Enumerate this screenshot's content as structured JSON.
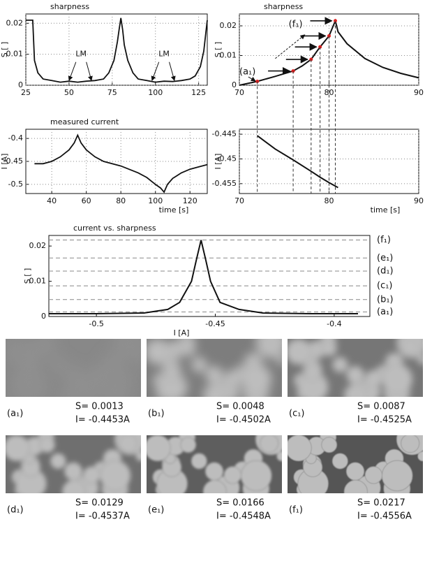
{
  "chart_data": [
    {
      "type": "line",
      "title": "sharpness",
      "ylabel": "S [ ]",
      "xlim": [
        25,
        130
      ],
      "xticks": [
        25,
        50,
        75,
        100,
        125
      ],
      "ylim": [
        0,
        0.023
      ],
      "yticks": [
        0,
        0.01,
        0.02
      ],
      "grid": true,
      "annotations": [
        "LM",
        "LM"
      ],
      "series": [
        {
          "color": "#111111",
          "x": [
            25,
            28,
            29,
            30,
            32,
            35,
            40,
            45,
            50,
            55,
            60,
            65,
            70,
            73,
            76,
            78,
            79,
            80,
            81,
            82,
            84,
            87,
            90,
            95,
            100,
            105,
            110,
            115,
            120,
            123,
            126,
            128,
            129,
            130
          ],
          "values": [
            0.021,
            0.021,
            0.021,
            0.008,
            0.004,
            0.002,
            0.0015,
            0.001,
            0.0013,
            0.001,
            0.0013,
            0.0015,
            0.002,
            0.004,
            0.008,
            0.014,
            0.018,
            0.0217,
            0.018,
            0.013,
            0.008,
            0.004,
            0.002,
            0.0015,
            0.001,
            0.0013,
            0.0012,
            0.0015,
            0.002,
            0.003,
            0.006,
            0.011,
            0.016,
            0.021
          ]
        }
      ]
    },
    {
      "type": "line",
      "title": "sharpness",
      "ylabel": "S [ ]",
      "xlim": [
        70,
        90
      ],
      "xticks": [
        70,
        80,
        90
      ],
      "ylim": [
        0,
        0.024
      ],
      "yticks": [
        0,
        0.01,
        0.02
      ],
      "grid": true,
      "annotations": [
        "(a₁)",
        "(f₁)"
      ],
      "series": [
        {
          "color": "#111111",
          "x": [
            70,
            72,
            74,
            76,
            77,
            78,
            79,
            80,
            80.7,
            81,
            82,
            84,
            86,
            88,
            90
          ],
          "values": [
            0,
            0.0013,
            0.003,
            0.0048,
            0.0065,
            0.0087,
            0.0129,
            0.0166,
            0.0217,
            0.018,
            0.014,
            0.009,
            0.006,
            0.004,
            0.0025
          ]
        },
        {
          "color": "#e02020",
          "style": "points",
          "x": [
            72,
            76,
            78,
            79,
            80,
            80.7
          ],
          "values": [
            0.0013,
            0.0048,
            0.0087,
            0.0129,
            0.0166,
            0.0217
          ]
        }
      ]
    },
    {
      "type": "line",
      "title": "measured current",
      "ylabel": "I [A]",
      "xlabel": "time [s]",
      "xlim": [
        25,
        130
      ],
      "xticks": [
        40,
        60,
        80,
        100,
        120
      ],
      "ylim": [
        -0.52,
        -0.38
      ],
      "yticks": [
        -0.5,
        -0.45,
        -0.4
      ],
      "grid": true,
      "series": [
        {
          "color": "#111111",
          "x": [
            30,
            35,
            40,
            45,
            50,
            53,
            55,
            57,
            60,
            65,
            70,
            80,
            90,
            95,
            100,
            103,
            105,
            107,
            110,
            115,
            120,
            125,
            130
          ],
          "values": [
            -0.455,
            -0.455,
            -0.45,
            -0.44,
            -0.425,
            -0.41,
            -0.393,
            -0.41,
            -0.425,
            -0.44,
            -0.45,
            -0.46,
            -0.475,
            -0.485,
            -0.5,
            -0.508,
            -0.517,
            -0.5,
            -0.487,
            -0.475,
            -0.467,
            -0.462,
            -0.457
          ]
        }
      ]
    },
    {
      "type": "line",
      "ylabel": "I [A]",
      "xlabel": "time [s]",
      "xlim": [
        70,
        90
      ],
      "xticks": [
        70,
        80,
        90
      ],
      "ylim": [
        -0.457,
        -0.444
      ],
      "yticks": [
        -0.455,
        -0.45,
        -0.445
      ],
      "grid": true,
      "series": [
        {
          "color": "#111111",
          "x": [
            72,
            74,
            76,
            78,
            79,
            80,
            81
          ],
          "values": [
            -0.4453,
            -0.448,
            -0.4502,
            -0.4525,
            -0.4537,
            -0.4548,
            -0.4558
          ]
        }
      ]
    },
    {
      "type": "line",
      "title": "current vs. sharpness",
      "ylabel": "S [ ]",
      "xlabel": "I [A]",
      "xlim": [
        -0.52,
        -0.385
      ],
      "xticks": [
        -0.5,
        -0.45,
        -0.4
      ],
      "ylim": [
        0,
        0.023
      ],
      "yticks": [
        0,
        0.01,
        0.02
      ],
      "grid": false,
      "levels": {
        "values": [
          0.0013,
          0.0048,
          0.0087,
          0.0129,
          0.0166,
          0.0217
        ],
        "labels": [
          "(a₁)",
          "(b₁)",
          "(c₁)",
          "(d₁)",
          "(e₁)",
          "(f₁)"
        ]
      },
      "series": [
        {
          "color": "#111111",
          "x": [
            -0.52,
            -0.5,
            -0.48,
            -0.47,
            -0.465,
            -0.46,
            -0.458,
            -0.456,
            -0.454,
            -0.452,
            -0.448,
            -0.44,
            -0.43,
            -0.41,
            -0.39
          ],
          "values": [
            0.0008,
            0.0008,
            0.001,
            0.002,
            0.004,
            0.01,
            0.016,
            0.0217,
            0.016,
            0.01,
            0.004,
            0.002,
            0.001,
            0.0008,
            0.0008
          ]
        }
      ]
    }
  ],
  "images": [
    {
      "label": "(a₁)",
      "s": "S= 0.0013",
      "i": "I= -0.4453A"
    },
    {
      "label": "(b₁)",
      "s": "S= 0.0048",
      "i": "I= -0.4502A"
    },
    {
      "label": "(c₁)",
      "s": "S= 0.0087",
      "i": "I= -0.4525A"
    },
    {
      "label": "(d₁)",
      "s": "S= 0.0129",
      "i": "I= -0.4537A"
    },
    {
      "label": "(e₁)",
      "s": "S= 0.0166",
      "i": "I= -0.4548A"
    },
    {
      "label": "(f₁)",
      "s": "S= 0.0217",
      "i": "I= -0.4556A"
    }
  ]
}
